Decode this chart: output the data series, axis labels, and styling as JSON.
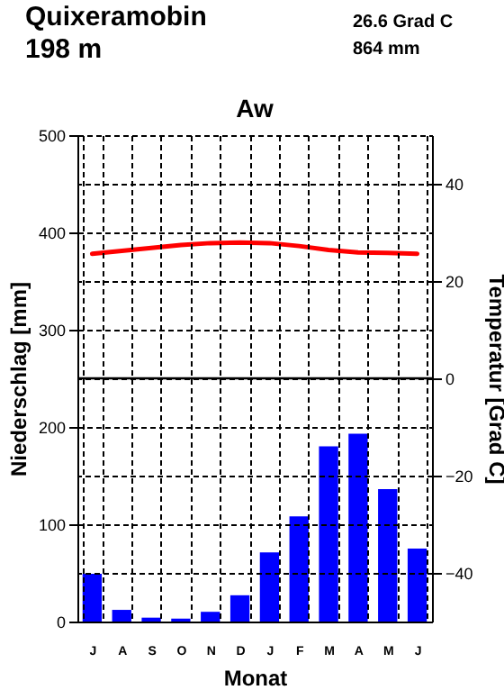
{
  "chart_data": {
    "type": "bar",
    "title": "Quixeramobin",
    "subtitle": "198 m",
    "annotations": [
      "26.6 Grad C",
      "864 mm",
      "Aw"
    ],
    "xlabel": "Monat",
    "ylabel": "Niederschlag [mm]",
    "y2label": "Temperatur [Grad C]",
    "categories": [
      "J",
      "A",
      "S",
      "O",
      "N",
      "D",
      "J",
      "F",
      "M",
      "A",
      "M",
      "J"
    ],
    "series": [
      {
        "color": "#0000ff",
        "values": [
          49,
          12,
          4,
          3,
          10,
          27,
          71,
          108,
          180,
          193,
          136,
          75
        ]
      },
      {
        "type": "line",
        "axis": "y2",
        "color": "#ff0000",
        "values": [
          25.6,
          26.2,
          26.8,
          27.4,
          27.8,
          27.9,
          27.8,
          27.2,
          26.4,
          25.9,
          25.8,
          25.6
        ]
      }
    ],
    "ylim": [
      0,
      500
    ],
    "yticks": [
      0,
      100,
      200,
      300,
      400,
      500
    ],
    "y2lim": [
      -50,
      50
    ],
    "y2ticks": [
      -40,
      -20,
      0,
      20,
      40
    ],
    "ref_lines": [
      {
        "axis": "y2",
        "value": 0,
        "color": "#000000",
        "line_style": "solid"
      }
    ],
    "grid": true
  }
}
